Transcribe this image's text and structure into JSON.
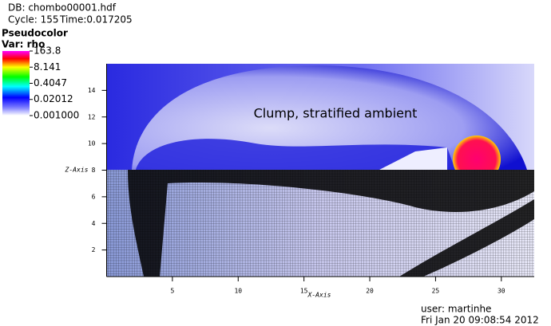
{
  "header": {
    "db": "DB: chombo00001.hdf",
    "cycle": "Cycle: 155",
    "time": "Time:0.017205"
  },
  "legend": {
    "title": "Pseudocolor",
    "variable": "Var: rho",
    "scale": "log",
    "range": [
      0.001,
      163.8
    ],
    "ticks": [
      163.8,
      8.141,
      0.4047,
      0.02012,
      {
        "value": 0.001,
        "label": "0.001000"
      }
    ]
  },
  "chart_data": {
    "type": "pseudocolor",
    "xlabel": "X-Axis",
    "ylabel": "Z-Axis",
    "xlim": [
      0,
      32.5
    ],
    "ylim": [
      0,
      16
    ],
    "xticks": [
      5,
      10,
      15,
      20,
      25,
      30
    ],
    "yticks": [
      2,
      4,
      6,
      8,
      10,
      12,
      14
    ],
    "annotation": "Clump, stratified ambient"
  },
  "footer": {
    "user": "user: martinhe",
    "date": "Fri Jan 20 09:08:54 2012"
  }
}
